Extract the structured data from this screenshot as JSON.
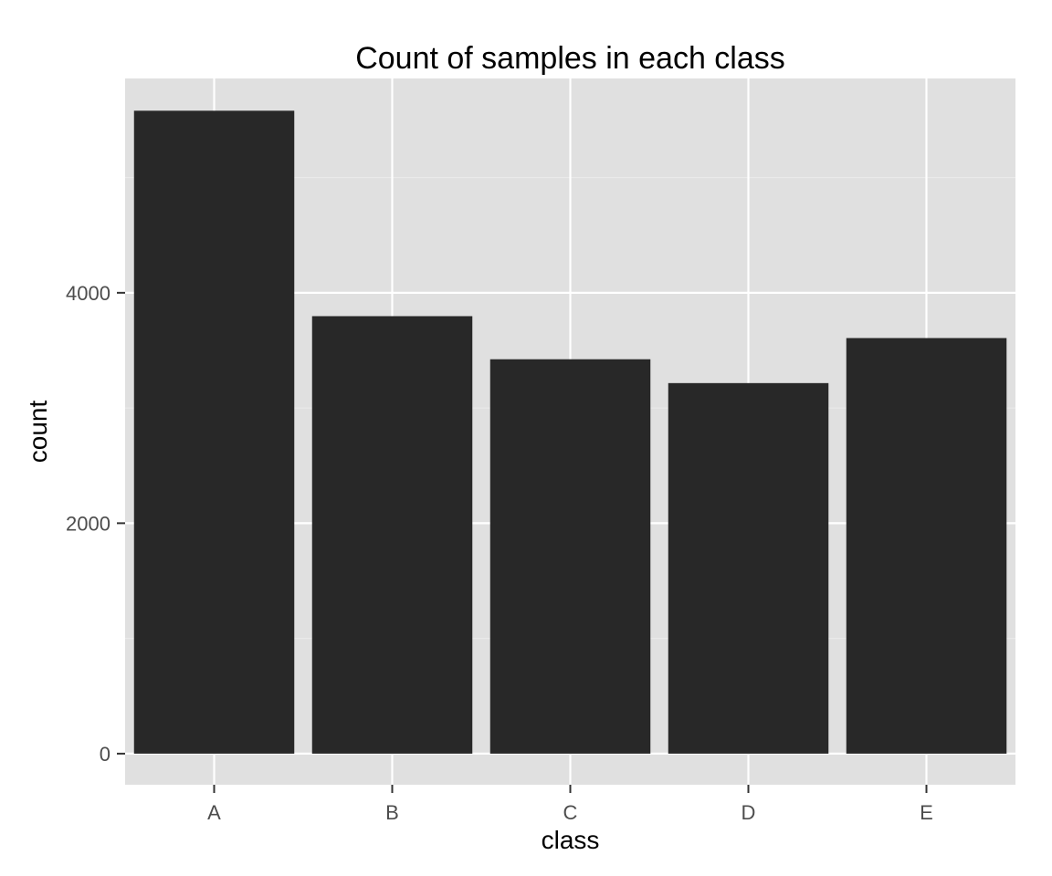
{
  "chart_data": {
    "type": "bar",
    "title": "Count of samples in each class",
    "xlabel": "class",
    "ylabel": "count",
    "categories": [
      "A",
      "B",
      "C",
      "D",
      "E"
    ],
    "values": [
      5580,
      3797,
      3423,
      3216,
      3607
    ],
    "ylim": [
      -270,
      5860
    ],
    "yticks": [
      0,
      2000,
      4000
    ],
    "yticks_labels": [
      "0",
      "2000",
      "4000"
    ],
    "grid": true,
    "legend": "none",
    "colors": {
      "panel_background": "#e0e0e0",
      "grid_major": "#ffffff",
      "grid_minor": "#ebebeb",
      "bar_fill": "#282828",
      "tick_text": "#4d4d4d",
      "tick_mark": "#333333"
    }
  }
}
